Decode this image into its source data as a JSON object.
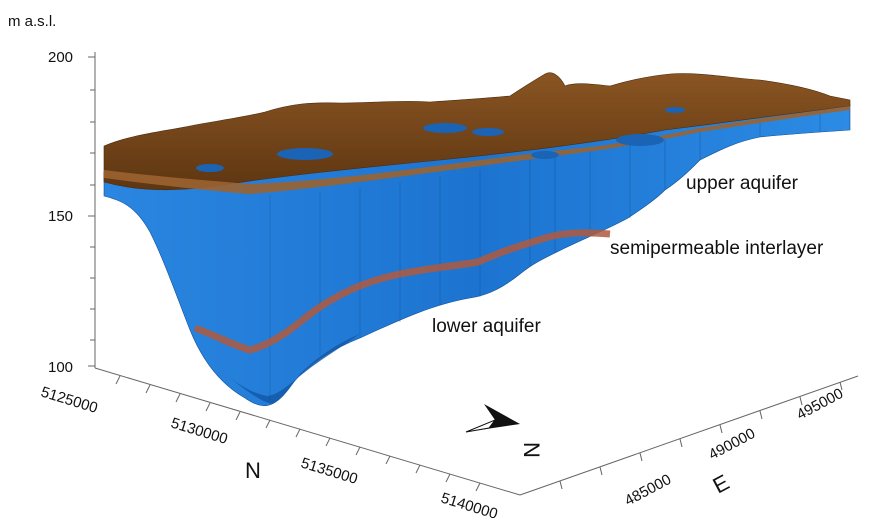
{
  "z_axis": {
    "unit_label": "m a.s.l.",
    "ticks": [
      "200",
      "150",
      "100"
    ]
  },
  "n_axis": {
    "name": "N",
    "ticks": [
      "5125000",
      "5130000",
      "5135000",
      "5140000"
    ]
  },
  "e_axis": {
    "name": "E",
    "ticks": [
      "485000",
      "490000",
      "495000"
    ]
  },
  "annotations": {
    "upper": "upper aquifer",
    "interlayer": "semipermeable interlayer",
    "lower": "lower aquifer"
  },
  "north_arrow": {
    "letter": "N"
  },
  "colors": {
    "surface": "#7a4a1c",
    "aquifer": "#1f78d4",
    "aquifer_dark": "#12509a",
    "interlayer": "#b0593d",
    "axis": "#666666"
  }
}
